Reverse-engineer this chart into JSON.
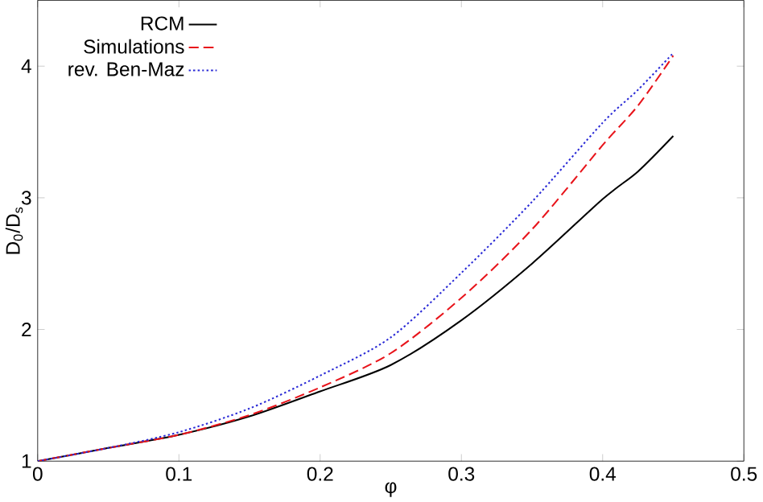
{
  "chart_data": {
    "type": "line",
    "xlabel": "φ",
    "ylabel": "D$_{0}$/D$_{s}$",
    "xlim": [
      0,
      0.5
    ],
    "ylim": [
      1,
      4.5
    ],
    "xticks": [
      0,
      0.1,
      0.2,
      0.3,
      0.4,
      0.5
    ],
    "yticks": [
      1,
      2,
      3,
      4
    ],
    "legend": "top left",
    "grid": false,
    "marker": "none",
    "x": [
      0,
      0.05,
      0.1,
      0.15,
      0.2,
      0.25,
      0.3,
      0.35,
      0.4,
      0.425,
      0.45
    ],
    "series": [
      {
        "name": "RCM",
        "color": "#000000",
        "line_style": "solid",
        "values": [
          1,
          1.1,
          1.2,
          1.34,
          1.53,
          1.73,
          2.07,
          2.5,
          2.99,
          3.2,
          3.47
        ]
      },
      {
        "name": "Simulations",
        "color": "#e8141b",
        "line_style": "dashed",
        "values": [
          1,
          1.1,
          1.2,
          1.35,
          1.56,
          1.82,
          2.24,
          2.76,
          3.4,
          3.7,
          4.08
        ]
      },
      {
        "name": "rev. Ben-Maz",
        "color": "#2a2ad6",
        "line_style": "dotted",
        "values": [
          1,
          1.1,
          1.22,
          1.4,
          1.65,
          1.94,
          2.43,
          2.97,
          3.57,
          3.82,
          4.1
        ]
      }
    ]
  }
}
